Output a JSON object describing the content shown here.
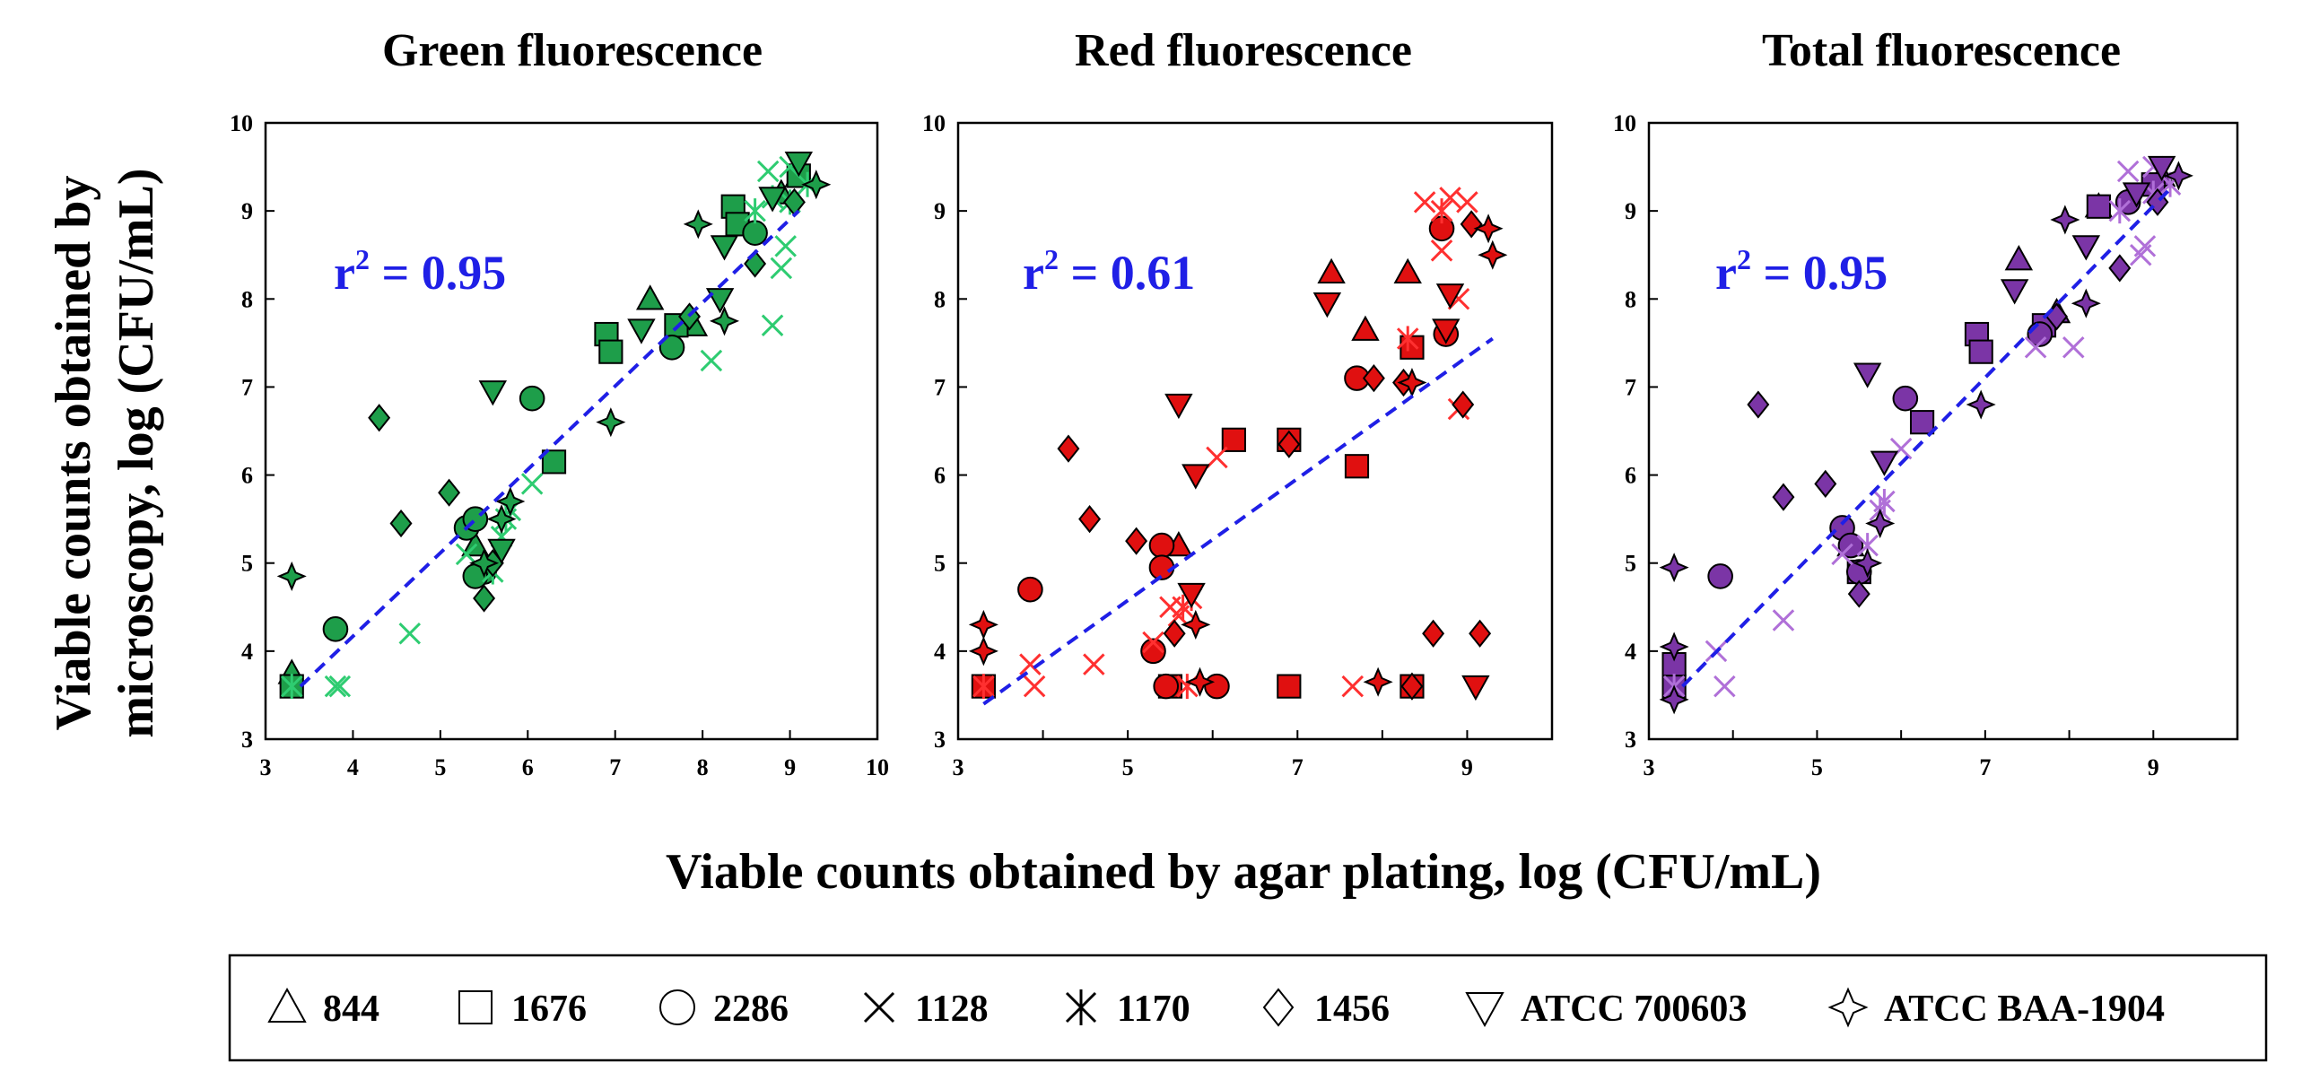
{
  "x_axis_title": "Viable counts obtained by agar plating, log (CFU/mL)",
  "y_axis_title_line1": "Viable counts obtained by",
  "y_axis_title_line2": "microscopy, log (CFU/mL)",
  "legend": [
    {
      "symbol": "triangle-up",
      "label": "844"
    },
    {
      "symbol": "square",
      "label": "1676"
    },
    {
      "symbol": "circle",
      "label": "2286"
    },
    {
      "symbol": "x",
      "label": "1128"
    },
    {
      "symbol": "asterisk",
      "label": "1170"
    },
    {
      "symbol": "diamond",
      "label": "1456"
    },
    {
      "symbol": "triangle-down",
      "label": "ATCC 700603"
    },
    {
      "symbol": "star4",
      "label": "ATCC BAA-1904"
    }
  ],
  "chart_data": [
    {
      "type": "scatter",
      "title": "Green fluorescence",
      "r2_prefix": "r",
      "r2_exp": "2",
      "r2_value": " = 0.95",
      "colors": {
        "fill": "#1e9e4a",
        "cross": "#2ecc71",
        "trend": "#1f1fe6"
      },
      "xlim": [
        3,
        10
      ],
      "ylim": [
        3,
        10
      ],
      "xticks": [
        "3",
        "4",
        "5",
        "6",
        "7",
        "8",
        "9",
        "10"
      ],
      "yticks": [
        "3",
        "4",
        "5",
        "6",
        "7",
        "8",
        "9",
        "10"
      ],
      "trendline": [
        [
          3.4,
          3.6
        ],
        [
          9.1,
          9.0
        ]
      ],
      "series": [
        {
          "name": "844",
          "marker": "triangle-up",
          "points": [
            [
              3.3,
              3.75
            ],
            [
              5.4,
              5.2
            ],
            [
              7.4,
              8.0
            ],
            [
              7.9,
              7.7
            ],
            [
              8.9,
              9.2
            ],
            [
              9.1,
              9.4
            ]
          ]
        },
        {
          "name": "1676",
          "marker": "square",
          "points": [
            [
              3.3,
              3.6
            ],
            [
              6.3,
              6.15
            ],
            [
              6.9,
              7.6
            ],
            [
              6.95,
              7.4
            ],
            [
              7.7,
              7.7
            ],
            [
              8.35,
              9.05
            ],
            [
              8.4,
              8.85
            ],
            [
              9.1,
              9.4
            ]
          ]
        },
        {
          "name": "2286",
          "marker": "circle",
          "points": [
            [
              3.8,
              4.25
            ],
            [
              5.3,
              5.4
            ],
            [
              5.4,
              5.5
            ],
            [
              5.5,
              4.9
            ],
            [
              5.4,
              4.85
            ],
            [
              6.05,
              6.87
            ],
            [
              7.65,
              7.45
            ],
            [
              8.6,
              8.75
            ]
          ]
        },
        {
          "name": "1128",
          "marker": "x",
          "points": [
            [
              3.8,
              3.6
            ],
            [
              3.85,
              3.6
            ],
            [
              4.65,
              4.2
            ],
            [
              5.3,
              5.1
            ],
            [
              6.05,
              5.9
            ],
            [
              8.1,
              7.3
            ],
            [
              8.8,
              7.7
            ],
            [
              8.75,
              9.45
            ],
            [
              8.9,
              8.35
            ],
            [
              8.95,
              8.6
            ],
            [
              9.0,
              9.5
            ]
          ]
        },
        {
          "name": "1170",
          "marker": "asterisk",
          "points": [
            [
              3.3,
              3.6
            ],
            [
              5.6,
              4.9
            ],
            [
              5.7,
              5.3
            ],
            [
              5.75,
              5.5
            ],
            [
              5.8,
              5.6
            ],
            [
              8.6,
              9.0
            ],
            [
              8.8,
              9.15
            ],
            [
              9.2,
              9.3
            ],
            [
              9.0,
              9.1
            ]
          ]
        },
        {
          "name": "1456",
          "marker": "diamond",
          "points": [
            [
              4.3,
              6.65
            ],
            [
              4.55,
              5.45
            ],
            [
              5.1,
              5.8
            ],
            [
              5.5,
              4.6
            ],
            [
              5.6,
              5.0
            ],
            [
              7.85,
              7.8
            ],
            [
              8.6,
              8.4
            ],
            [
              9.05,
              9.1
            ]
          ]
        },
        {
          "name": "ATCC 700603",
          "marker": "triangle-down",
          "points": [
            [
              5.6,
              6.95
            ],
            [
              5.7,
              5.15
            ],
            [
              7.3,
              7.65
            ],
            [
              8.2,
              8.0
            ],
            [
              8.25,
              8.6
            ],
            [
              8.8,
              9.15
            ],
            [
              9.1,
              9.55
            ]
          ]
        },
        {
          "name": "ATCC BAA-1904",
          "marker": "star4",
          "points": [
            [
              3.3,
              4.85
            ],
            [
              5.5,
              5.0
            ],
            [
              5.7,
              5.5
            ],
            [
              5.8,
              5.7
            ],
            [
              6.95,
              6.6
            ],
            [
              7.95,
              8.85
            ],
            [
              8.25,
              7.75
            ],
            [
              9.3,
              9.3
            ]
          ]
        }
      ]
    },
    {
      "type": "scatter",
      "title": "Red fluorescence",
      "r2_prefix": "r",
      "r2_exp": "2",
      "r2_value": " = 0.61",
      "colors": {
        "fill": "#e01010",
        "cross": "#ff3030",
        "trend": "#1f1fe6"
      },
      "xlim": [
        3,
        10
      ],
      "ylim": [
        3,
        10
      ],
      "xticks": [
        "3",
        "5",
        "7",
        "9"
      ],
      "yticks": [
        "3",
        "4",
        "5",
        "6",
        "7",
        "8",
        "9",
        "10"
      ],
      "trendline": [
        [
          3.3,
          3.4
        ],
        [
          9.3,
          7.55
        ]
      ],
      "series": [
        {
          "name": "844",
          "marker": "triangle-up",
          "points": [
            [
              5.6,
              5.2
            ],
            [
              7.4,
              8.3
            ],
            [
              7.8,
              7.65
            ],
            [
              8.3,
              8.3
            ]
          ]
        },
        {
          "name": "1676",
          "marker": "square",
          "points": [
            [
              3.3,
              3.6
            ],
            [
              5.5,
              3.6
            ],
            [
              6.25,
              6.4
            ],
            [
              6.9,
              6.4
            ],
            [
              6.9,
              3.6
            ],
            [
              7.7,
              6.1
            ],
            [
              8.35,
              7.45
            ],
            [
              8.35,
              3.6
            ]
          ]
        },
        {
          "name": "2286",
          "marker": "circle",
          "points": [
            [
              3.85,
              4.7
            ],
            [
              5.3,
              4.0
            ],
            [
              5.4,
              5.2
            ],
            [
              5.4,
              4.95
            ],
            [
              5.45,
              3.6
            ],
            [
              6.05,
              3.6
            ],
            [
              7.7,
              7.1
            ],
            [
              8.7,
              8.8
            ],
            [
              8.75,
              7.6
            ]
          ]
        },
        {
          "name": "1128",
          "marker": "x",
          "points": [
            [
              3.85,
              3.85
            ],
            [
              3.9,
              3.6
            ],
            [
              4.6,
              3.85
            ],
            [
              5.3,
              4.1
            ],
            [
              5.5,
              4.5
            ],
            [
              5.6,
              4.4
            ],
            [
              6.05,
              6.2
            ],
            [
              7.65,
              3.6
            ],
            [
              8.5,
              9.1
            ],
            [
              8.7,
              8.55
            ],
            [
              8.8,
              9.15
            ],
            [
              8.9,
              8.0
            ],
            [
              8.9,
              6.75
            ],
            [
              9.0,
              9.1
            ]
          ]
        },
        {
          "name": "1170",
          "marker": "asterisk",
          "points": [
            [
              3.3,
              3.6
            ],
            [
              5.65,
              4.5
            ],
            [
              5.75,
              4.6
            ],
            [
              5.7,
              3.6
            ],
            [
              8.3,
              7.55
            ],
            [
              8.7,
              9.0
            ]
          ]
        },
        {
          "name": "1456",
          "marker": "diamond",
          "points": [
            [
              4.3,
              6.3
            ],
            [
              4.55,
              5.5
            ],
            [
              5.1,
              5.25
            ],
            [
              5.55,
              4.2
            ],
            [
              6.9,
              6.35
            ],
            [
              7.9,
              7.1
            ],
            [
              8.25,
              7.05
            ],
            [
              8.35,
              3.6
            ],
            [
              8.6,
              4.2
            ],
            [
              8.95,
              6.8
            ],
            [
              9.05,
              8.85
            ],
            [
              9.15,
              4.2
            ]
          ]
        },
        {
          "name": "ATCC 700603",
          "marker": "triangle-down",
          "points": [
            [
              5.6,
              6.8
            ],
            [
              5.8,
              6.0
            ],
            [
              5.75,
              4.65
            ],
            [
              7.35,
              7.95
            ],
            [
              8.75,
              7.65
            ],
            [
              8.8,
              8.05
            ],
            [
              9.1,
              3.6
            ]
          ]
        },
        {
          "name": "ATCC BAA-1904",
          "marker": "star4",
          "points": [
            [
              3.3,
              4.3
            ],
            [
              3.3,
              4.0
            ],
            [
              5.8,
              4.3
            ],
            [
              5.85,
              3.65
            ],
            [
              7.95,
              3.65
            ],
            [
              8.35,
              7.05
            ],
            [
              9.25,
              8.8
            ],
            [
              9.3,
              8.5
            ]
          ]
        }
      ]
    },
    {
      "type": "scatter",
      "title": "Total fluorescence",
      "r2_prefix": "r",
      "r2_exp": "2",
      "r2_value": " = 0.95",
      "colors": {
        "fill": "#7b35a6",
        "cross": "#b070d8",
        "trend": "#1f1fe6"
      },
      "xlim": [
        3,
        10
      ],
      "ylim": [
        3,
        10
      ],
      "xticks": [
        "3",
        "5",
        "7",
        "9"
      ],
      "yticks": [
        "3",
        "4",
        "5",
        "6",
        "7",
        "8",
        "9",
        "10"
      ],
      "trendline": [
        [
          3.4,
          3.6
        ],
        [
          9.2,
          9.25
        ]
      ],
      "series": [
        {
          "name": "844",
          "marker": "triangle-up",
          "points": [
            [
              5.4,
              5.2
            ],
            [
              7.4,
              8.45
            ],
            [
              7.85,
              7.85
            ],
            [
              8.35,
              9.05
            ],
            [
              9.1,
              9.4
            ]
          ]
        },
        {
          "name": "1676",
          "marker": "square",
          "points": [
            [
              3.3,
              3.6
            ],
            [
              3.3,
              3.85
            ],
            [
              5.5,
              4.9
            ],
            [
              6.25,
              6.6
            ],
            [
              6.9,
              7.6
            ],
            [
              6.95,
              7.4
            ],
            [
              7.7,
              7.7
            ],
            [
              8.35,
              9.05
            ],
            [
              9.0,
              9.3
            ]
          ]
        },
        {
          "name": "2286",
          "marker": "circle",
          "points": [
            [
              3.85,
              4.85
            ],
            [
              5.3,
              5.4
            ],
            [
              5.4,
              5.2
            ],
            [
              5.5,
              4.9
            ],
            [
              6.05,
              6.87
            ],
            [
              7.65,
              7.6
            ],
            [
              8.7,
              9.1
            ]
          ]
        },
        {
          "name": "1128",
          "marker": "x",
          "points": [
            [
              3.8,
              4.0
            ],
            [
              3.9,
              3.6
            ],
            [
              4.6,
              4.35
            ],
            [
              5.3,
              5.1
            ],
            [
              6.0,
              6.3
            ],
            [
              7.6,
              7.45
            ],
            [
              8.05,
              7.45
            ],
            [
              8.7,
              9.45
            ],
            [
              8.85,
              8.5
            ],
            [
              8.9,
              8.6
            ],
            [
              9.0,
              9.5
            ]
          ]
        },
        {
          "name": "1170",
          "marker": "asterisk",
          "points": [
            [
              3.3,
              3.6
            ],
            [
              5.6,
              5.2
            ],
            [
              5.75,
              5.6
            ],
            [
              5.8,
              5.7
            ],
            [
              8.6,
              9.0
            ],
            [
              9.0,
              9.2
            ],
            [
              9.2,
              9.3
            ]
          ]
        },
        {
          "name": "1456",
          "marker": "diamond",
          "points": [
            [
              4.3,
              6.8
            ],
            [
              4.6,
              5.75
            ],
            [
              5.1,
              5.9
            ],
            [
              5.5,
              4.65
            ],
            [
              7.85,
              7.8
            ],
            [
              8.6,
              8.35
            ],
            [
              9.05,
              9.1
            ]
          ]
        },
        {
          "name": "ATCC 700603",
          "marker": "triangle-down",
          "points": [
            [
              5.6,
              7.15
            ],
            [
              5.8,
              6.15
            ],
            [
              7.35,
              8.1
            ],
            [
              8.2,
              8.6
            ],
            [
              8.8,
              9.2
            ],
            [
              9.1,
              9.5
            ]
          ]
        },
        {
          "name": "ATCC BAA-1904",
          "marker": "star4",
          "points": [
            [
              3.3,
              4.95
            ],
            [
              3.3,
              4.05
            ],
            [
              3.3,
              3.45
            ],
            [
              5.6,
              5.0
            ],
            [
              5.75,
              5.45
            ],
            [
              6.95,
              6.8
            ],
            [
              7.95,
              8.9
            ],
            [
              8.2,
              7.95
            ],
            [
              9.3,
              9.4
            ]
          ]
        }
      ]
    }
  ]
}
